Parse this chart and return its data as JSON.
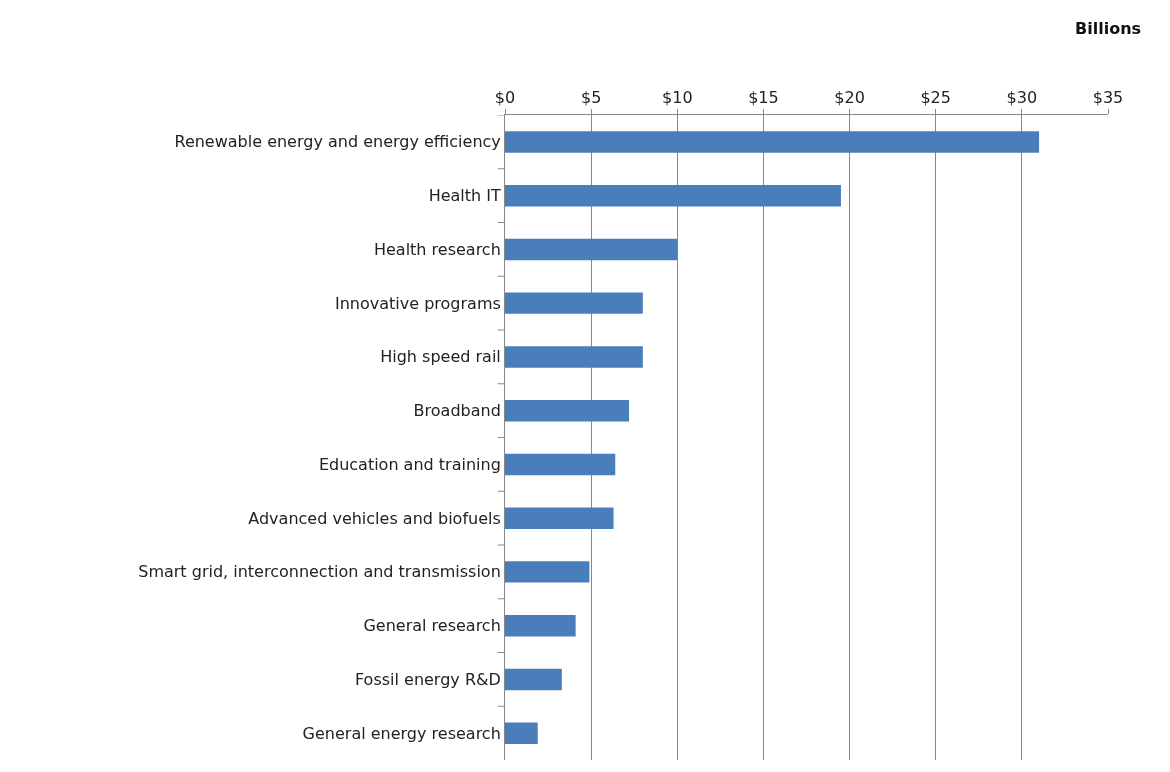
{
  "chart_data": {
    "type": "bar",
    "orientation": "horizontal",
    "xlabel": "Billions",
    "categories": [
      "Renewable energy and energy efficiency",
      "Health IT",
      "Health research",
      "Innovative programs",
      "High speed rail",
      "Broadband",
      "Education and training",
      "Advanced vehicles and biofuels",
      "Smart grid, interconnection and transmission",
      "General research",
      "Fossil energy R&D",
      "General energy research"
    ],
    "values": [
      31,
      19.5,
      10,
      8,
      8,
      7.2,
      6.4,
      6.3,
      4.9,
      4.1,
      3.3,
      1.9
    ],
    "color": "#4a7ebb",
    "xlim": [
      0,
      35
    ],
    "xticks": [
      {
        "value": 0,
        "label": "$0"
      },
      {
        "value": 5,
        "label": "$5"
      },
      {
        "value": 10,
        "label": "$10"
      },
      {
        "value": 15,
        "label": "$15"
      },
      {
        "value": 20,
        "label": "$20"
      },
      {
        "value": 25,
        "label": "$25"
      },
      {
        "value": 30,
        "label": "$30"
      },
      {
        "value": 35,
        "label": "$35"
      }
    ],
    "grid": "x"
  }
}
